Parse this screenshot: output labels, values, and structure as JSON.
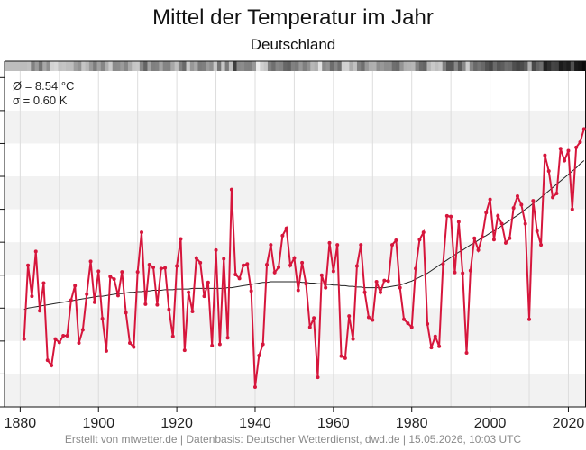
{
  "chart_data": {
    "type": "line",
    "title": "Mittel der Temperatur im Jahr",
    "subtitle": "Deutschland",
    "stats": {
      "mean": "Ø = 8.54 °C",
      "sd": "σ = 0.60 K"
    },
    "footer": "Erstellt von mtwetter.de | Datenbasis: Deutscher Wetterdienst, dwd.de | 15.05.2026, 10:03 UTC",
    "xlim": [
      1876,
      2024.5
    ],
    "ylim": [
      6.5,
      11.6
    ],
    "xticks": [
      1880,
      1900,
      1920,
      1940,
      1960,
      1980,
      2000,
      2020
    ],
    "yticks": [
      6.5,
      7.0,
      7.5,
      8.0,
      8.5,
      9.0,
      9.5,
      10.0,
      10.5,
      11.0,
      11.5
    ],
    "grid": true,
    "colors": {
      "annual": "#d6163c",
      "trend": "#222222",
      "band": "#f2f2f2",
      "grid": "#dddddd"
    },
    "x": [
      1881,
      1882,
      1883,
      1884,
      1885,
      1886,
      1887,
      1888,
      1889,
      1890,
      1891,
      1892,
      1893,
      1894,
      1895,
      1896,
      1897,
      1898,
      1899,
      1900,
      1901,
      1902,
      1903,
      1904,
      1905,
      1906,
      1907,
      1908,
      1909,
      1910,
      1911,
      1912,
      1913,
      1914,
      1915,
      1916,
      1917,
      1918,
      1919,
      1920,
      1921,
      1922,
      1923,
      1924,
      1925,
      1926,
      1927,
      1928,
      1929,
      1930,
      1931,
      1932,
      1933,
      1934,
      1935,
      1936,
      1937,
      1938,
      1939,
      1940,
      1941,
      1942,
      1943,
      1944,
      1945,
      1946,
      1947,
      1948,
      1949,
      1950,
      1951,
      1952,
      1953,
      1954,
      1955,
      1956,
      1957,
      1958,
      1959,
      1960,
      1961,
      1962,
      1963,
      1964,
      1965,
      1966,
      1967,
      1968,
      1969,
      1970,
      1971,
      1972,
      1973,
      1974,
      1975,
      1976,
      1977,
      1978,
      1979,
      1980,
      1981,
      1982,
      1983,
      1984,
      1985,
      1986,
      1987,
      1988,
      1989,
      1990,
      1991,
      1992,
      1993,
      1994,
      1995,
      1996,
      1997,
      1998,
      1999,
      2000,
      2001,
      2002,
      2003,
      2004,
      2005,
      2006,
      2007,
      2008,
      2009,
      2010,
      2011,
      2012,
      2013,
      2014,
      2015,
      2016,
      2017,
      2018,
      2019,
      2020,
      2021,
      2022,
      2023,
      2024
    ],
    "series": [
      {
        "values": [
          7.53,
          8.65,
          8.18,
          8.86,
          7.96,
          8.38,
          7.21,
          7.13,
          7.53,
          7.48,
          7.58,
          7.58,
          8.12,
          8.34,
          7.47,
          7.67,
          8.21,
          8.71,
          8.09,
          8.56,
          7.84,
          7.35,
          8.48,
          8.44,
          8.19,
          8.55,
          7.93,
          7.47,
          7.41,
          8.55,
          9.15,
          8.06,
          8.66,
          8.62,
          8.05,
          8.6,
          8.61,
          7.98,
          7.57,
          8.64,
          9.05,
          7.36,
          8.24,
          7.95,
          8.76,
          8.69,
          8.18,
          8.39,
          7.43,
          8.88,
          7.45,
          8.75,
          7.55,
          9.8,
          8.51,
          8.45,
          8.65,
          8.67,
          8.26,
          6.8,
          7.28,
          7.45,
          8.66,
          8.96,
          8.54,
          8.62,
          9.1,
          9.21,
          8.65,
          8.76,
          8.27,
          8.69,
          8.37,
          7.71,
          7.85,
          6.95,
          8.5,
          8.31,
          8.99,
          8.56,
          8.96,
          7.27,
          7.24,
          7.88,
          7.53,
          8.64,
          8.96,
          8.24,
          7.86,
          7.82,
          8.4,
          8.24,
          8.42,
          8.41,
          8.96,
          9.03,
          8.31,
          7.83,
          7.77,
          7.71,
          8.6,
          9.04,
          9.15,
          7.76,
          7.4,
          7.57,
          7.42,
          8.67,
          9.4,
          9.39,
          8.54,
          9.31,
          8.53,
          7.32,
          8.57,
          9.06,
          8.88,
          9.08,
          9.45,
          9.65,
          9.04,
          9.4,
          9.28,
          8.99,
          9.06,
          9.52,
          9.7,
          9.57,
          9.28,
          7.83,
          9.63,
          9.17,
          8.96,
          10.32,
          10.08,
          9.68,
          9.74,
          10.42,
          10.24,
          10.39,
          9.5,
          10.44,
          10.52,
          10.72
        ]
      },
      {
        "values": [
          7.98,
          8.0,
          8.01,
          8.02,
          8.03,
          8.04,
          8.05,
          8.06,
          8.07,
          8.08,
          8.09,
          8.1,
          8.11,
          8.12,
          8.13,
          8.14,
          8.15,
          8.16,
          8.17,
          8.18,
          8.18,
          8.19,
          8.2,
          8.21,
          8.22,
          8.22,
          8.23,
          8.24,
          8.24,
          8.25,
          8.25,
          8.26,
          8.26,
          8.27,
          8.27,
          8.27,
          8.28,
          8.28,
          8.28,
          8.29,
          8.29,
          8.29,
          8.29,
          8.3,
          8.3,
          8.3,
          8.3,
          8.3,
          8.3,
          8.3,
          8.3,
          8.3,
          8.31,
          8.31,
          8.32,
          8.33,
          8.34,
          8.35,
          8.36,
          8.37,
          8.38,
          8.39,
          8.39,
          8.4,
          8.4,
          8.4,
          8.4,
          8.4,
          8.4,
          8.4,
          8.4,
          8.39,
          8.39,
          8.38,
          8.38,
          8.37,
          8.37,
          8.36,
          8.36,
          8.35,
          8.35,
          8.34,
          8.34,
          8.33,
          8.33,
          8.32,
          8.32,
          8.31,
          8.31,
          8.31,
          8.31,
          8.31,
          8.31,
          8.32,
          8.33,
          8.34,
          8.35,
          8.37,
          8.39,
          8.41,
          8.44,
          8.47,
          8.5,
          8.53,
          8.57,
          8.61,
          8.65,
          8.69,
          8.73,
          8.77,
          8.81,
          8.85,
          8.88,
          8.92,
          8.96,
          8.99,
          9.03,
          9.07,
          9.1,
          9.14,
          9.17,
          9.21,
          9.25,
          9.29,
          9.33,
          9.37,
          9.41,
          9.45,
          9.5,
          9.54,
          9.59,
          9.63,
          9.68,
          9.73,
          9.78,
          9.83,
          9.88,
          9.93,
          9.98,
          10.03,
          10.08,
          10.13,
          10.19,
          10.24
        ]
      }
    ]
  }
}
